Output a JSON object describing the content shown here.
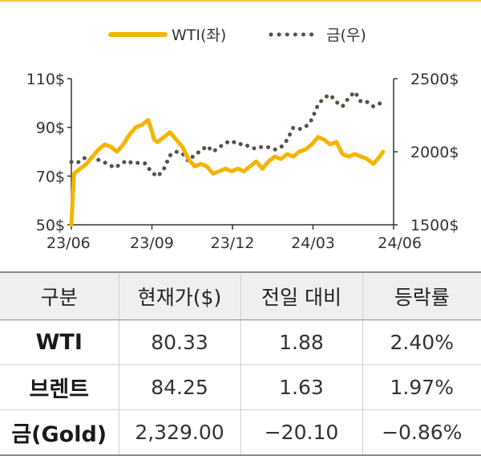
{
  "chart_data": {
    "type": "line",
    "x_ticks": [
      "23/06",
      "23/09",
      "23/12",
      "24/03",
      "24/06"
    ],
    "y_left": {
      "ticks": [
        "110$",
        "90$",
        "70$",
        "50$"
      ],
      "values": [
        110,
        90,
        70,
        50
      ],
      "range": [
        50,
        110
      ]
    },
    "y_right": {
      "ticks": [
        "2500$",
        "2000$",
        "1500$"
      ],
      "values": [
        2500,
        2000,
        1500
      ],
      "range": [
        1500,
        2500
      ]
    },
    "grid": false,
    "legend_position": "top",
    "series": [
      {
        "name": "WTI(좌)",
        "axis": "left",
        "style": "solid",
        "color": "#f5b400",
        "dates": [
          "2023-06-30",
          "2023-07-03",
          "2023-07-10",
          "2023-07-17",
          "2023-07-24",
          "2023-07-31",
          "2023-08-07",
          "2023-08-14",
          "2023-08-21",
          "2023-08-28",
          "2023-09-04",
          "2023-09-11",
          "2023-09-18",
          "2023-09-25",
          "2023-09-28",
          "2023-10-02",
          "2023-10-06",
          "2023-10-13",
          "2023-10-20",
          "2023-10-27",
          "2023-11-03",
          "2023-11-10",
          "2023-11-17",
          "2023-11-24",
          "2023-12-01",
          "2023-12-08",
          "2023-12-15",
          "2023-12-22",
          "2023-12-29",
          "2024-01-05",
          "2024-01-12",
          "2024-01-19",
          "2024-01-26",
          "2024-02-02",
          "2024-02-09",
          "2024-02-16",
          "2024-02-23",
          "2024-03-01",
          "2024-03-08",
          "2024-03-15",
          "2024-03-22",
          "2024-03-29",
          "2024-04-05",
          "2024-04-12",
          "2024-04-19",
          "2024-04-26",
          "2024-05-03",
          "2024-05-10",
          "2024-05-17",
          "2024-05-24",
          "2024-05-31",
          "2024-06-07",
          "2024-06-14",
          "2024-06-18"
        ],
        "values": [
          50,
          71,
          73,
          75,
          78,
          81,
          83,
          82,
          80,
          83,
          87,
          90,
          91,
          93,
          90,
          85,
          84,
          86,
          88,
          85,
          82,
          77,
          74,
          75,
          74,
          71,
          72,
          73,
          72,
          73,
          72,
          74,
          76,
          73,
          76,
          78,
          77,
          79,
          78,
          80,
          81,
          83,
          86,
          85,
          83,
          84,
          79,
          78,
          79,
          78,
          77,
          75,
          78,
          80
        ]
      },
      {
        "name": "금(우)",
        "axis": "right",
        "style": "dotted",
        "color": "#5a5048",
        "dates": [
          "2023-06-30",
          "2023-07-07",
          "2023-07-14",
          "2023-07-21",
          "2023-07-28",
          "2023-08-04",
          "2023-08-11",
          "2023-08-18",
          "2023-08-25",
          "2023-09-01",
          "2023-09-08",
          "2023-09-15",
          "2023-09-22",
          "2023-09-29",
          "2023-10-06",
          "2023-10-13",
          "2023-10-20",
          "2023-10-27",
          "2023-11-03",
          "2023-11-10",
          "2023-11-17",
          "2023-11-24",
          "2023-12-01",
          "2023-12-08",
          "2023-12-15",
          "2023-12-22",
          "2023-12-29",
          "2024-01-05",
          "2024-01-12",
          "2024-01-19",
          "2024-01-26",
          "2024-02-02",
          "2024-02-09",
          "2024-02-16",
          "2024-02-23",
          "2024-03-01",
          "2024-03-08",
          "2024-03-15",
          "2024-03-22",
          "2024-03-29",
          "2024-04-05",
          "2024-04-12",
          "2024-04-19",
          "2024-04-26",
          "2024-05-03",
          "2024-05-10",
          "2024-05-17",
          "2024-05-24",
          "2024-05-31",
          "2024-06-07",
          "2024-06-14",
          "2024-06-18"
        ],
        "values": [
          1930,
          1925,
          1955,
          1965,
          1950,
          1935,
          1915,
          1890,
          1915,
          1940,
          1920,
          1925,
          1920,
          1860,
          1830,
          1880,
          1975,
          2000,
          1990,
          1935,
          1980,
          2005,
          2040,
          2000,
          2030,
          2060,
          2075,
          2050,
          2055,
          2030,
          2020,
          2035,
          2030,
          2015,
          2030,
          2080,
          2165,
          2155,
          2170,
          2220,
          2320,
          2370,
          2390,
          2340,
          2310,
          2370,
          2410,
          2340,
          2340,
          2310,
          2330,
          2329
        ]
      }
    ]
  },
  "table": {
    "headers": [
      "구분",
      "현재가($)",
      "전일 대비",
      "등락률"
    ],
    "rows": [
      {
        "name": "WTI",
        "price": "80.33",
        "change": "1.88",
        "rate": "2.40%"
      },
      {
        "name": "브렌트",
        "price": "84.25",
        "change": "1.63",
        "rate": "1.97%"
      },
      {
        "name": "금(Gold)",
        "price": "2,329.00",
        "change": "−20.10",
        "rate": "−0.86%"
      }
    ]
  }
}
